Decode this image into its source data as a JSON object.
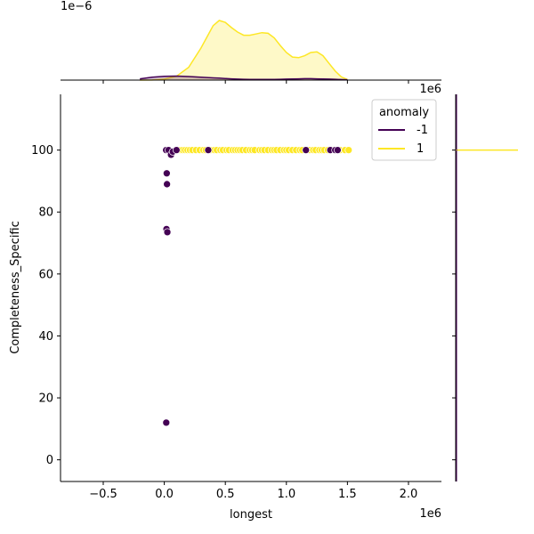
{
  "chart_data": {
    "type": "scatter",
    "subtype": "jointplot",
    "title": "",
    "xlabel": "longest",
    "ylabel": "Completeness_Specific",
    "x_offset_label": "1e6",
    "top_margin_offset_label": "1e−6",
    "top_margin_x_offset_label": "1e6",
    "xlim": [
      -850000,
      2270000
    ],
    "ylim": [
      -7,
      118
    ],
    "x_ticks": [
      -500000,
      0,
      500000,
      1000000,
      1500000,
      2000000
    ],
    "x_tick_labels": [
      "−0.5",
      "0.0",
      "0.5",
      "1.0",
      "1.5",
      "2.0"
    ],
    "y_ticks": [
      0,
      20,
      40,
      60,
      80,
      100
    ],
    "y_tick_labels": [
      "0",
      "20",
      "40",
      "60",
      "80",
      "100"
    ],
    "grid": false,
    "legend": {
      "title": "anomaly",
      "placement": "top-right",
      "entries": [
        {
          "label": "-1",
          "color": "#440154"
        },
        {
          "label": "1",
          "color": "#fde725"
        }
      ]
    },
    "series": [
      {
        "name": "1",
        "color": "#fde725",
        "points": [
          [
            100000,
            100
          ],
          [
            130000,
            100
          ],
          [
            150000,
            100
          ],
          [
            170000,
            100
          ],
          [
            190000,
            100
          ],
          [
            210000,
            100
          ],
          [
            230000,
            100
          ],
          [
            260000,
            100
          ],
          [
            290000,
            100
          ],
          [
            320000,
            100
          ],
          [
            340000,
            100
          ],
          [
            380000,
            100
          ],
          [
            410000,
            100
          ],
          [
            430000,
            100
          ],
          [
            460000,
            100
          ],
          [
            480000,
            100
          ],
          [
            510000,
            100
          ],
          [
            530000,
            100
          ],
          [
            560000,
            100
          ],
          [
            580000,
            100
          ],
          [
            600000,
            100
          ],
          [
            620000,
            100
          ],
          [
            640000,
            100
          ],
          [
            670000,
            100
          ],
          [
            700000,
            100
          ],
          [
            720000,
            100
          ],
          [
            740000,
            100
          ],
          [
            780000,
            100
          ],
          [
            800000,
            100
          ],
          [
            820000,
            100
          ],
          [
            850000,
            100
          ],
          [
            880000,
            100
          ],
          [
            900000,
            100
          ],
          [
            920000,
            100
          ],
          [
            950000,
            100
          ],
          [
            980000,
            100
          ],
          [
            1000000,
            100
          ],
          [
            1020000,
            100
          ],
          [
            1050000,
            100
          ],
          [
            1080000,
            100
          ],
          [
            1110000,
            100
          ],
          [
            1130000,
            100
          ],
          [
            1190000,
            100
          ],
          [
            1220000,
            100
          ],
          [
            1240000,
            100
          ],
          [
            1270000,
            100
          ],
          [
            1290000,
            100
          ],
          [
            1310000,
            100
          ],
          [
            1340000,
            100
          ],
          [
            1390000,
            100
          ],
          [
            1440000,
            100
          ],
          [
            1480000,
            100
          ],
          [
            1510000,
            100
          ]
        ]
      },
      {
        "name": "-1",
        "color": "#440154",
        "points": [
          [
            15000,
            100
          ],
          [
            20000,
            92.5
          ],
          [
            22000,
            89
          ],
          [
            18000,
            74.5
          ],
          [
            25000,
            73.5
          ],
          [
            16000,
            12
          ],
          [
            35000,
            100
          ],
          [
            55000,
            98.5
          ],
          [
            70000,
            99.5
          ],
          [
            100000,
            100
          ],
          [
            360000,
            100
          ],
          [
            1160000,
            100
          ],
          [
            1360000,
            100
          ],
          [
            1400000,
            100
          ],
          [
            1420000,
            100
          ]
        ]
      }
    ],
    "marginal_x_density": {
      "x": [
        -200000,
        -100000,
        0,
        100000,
        200000,
        300000,
        400000,
        450000,
        500000,
        550000,
        600000,
        650000,
        700000,
        750000,
        800000,
        850000,
        900000,
        950000,
        1000000,
        1050000,
        1100000,
        1150000,
        1200000,
        1250000,
        1300000,
        1350000,
        1400000,
        1450000,
        1500000
      ],
      "series": [
        {
          "name": "1",
          "color": "#fde725",
          "y": [
            0,
            0.002,
            0.015,
            0.06,
            0.2,
            0.5,
            0.85,
            0.93,
            0.9,
            0.82,
            0.75,
            0.7,
            0.7,
            0.72,
            0.74,
            0.73,
            0.66,
            0.54,
            0.43,
            0.36,
            0.35,
            0.38,
            0.43,
            0.44,
            0.38,
            0.26,
            0.14,
            0.05,
            0.01
          ]
        },
        {
          "name": "-1",
          "color": "#440154",
          "y": [
            0.02,
            0.045,
            0.06,
            0.062,
            0.055,
            0.045,
            0.035,
            0.03,
            0.025,
            0.02,
            0.015,
            0.012,
            0.01,
            0.01,
            0.01,
            0.01,
            0.01,
            0.012,
            0.015,
            0.018,
            0.02,
            0.022,
            0.022,
            0.02,
            0.018,
            0.015,
            0.012,
            0.008,
            0.005
          ]
        }
      ]
    },
    "marginal_y_density": {
      "series": [
        {
          "name": "1",
          "color": "#fde725",
          "at": 100
        },
        {
          "name": "-1",
          "color": "#440154",
          "at": 100
        }
      ]
    }
  }
}
